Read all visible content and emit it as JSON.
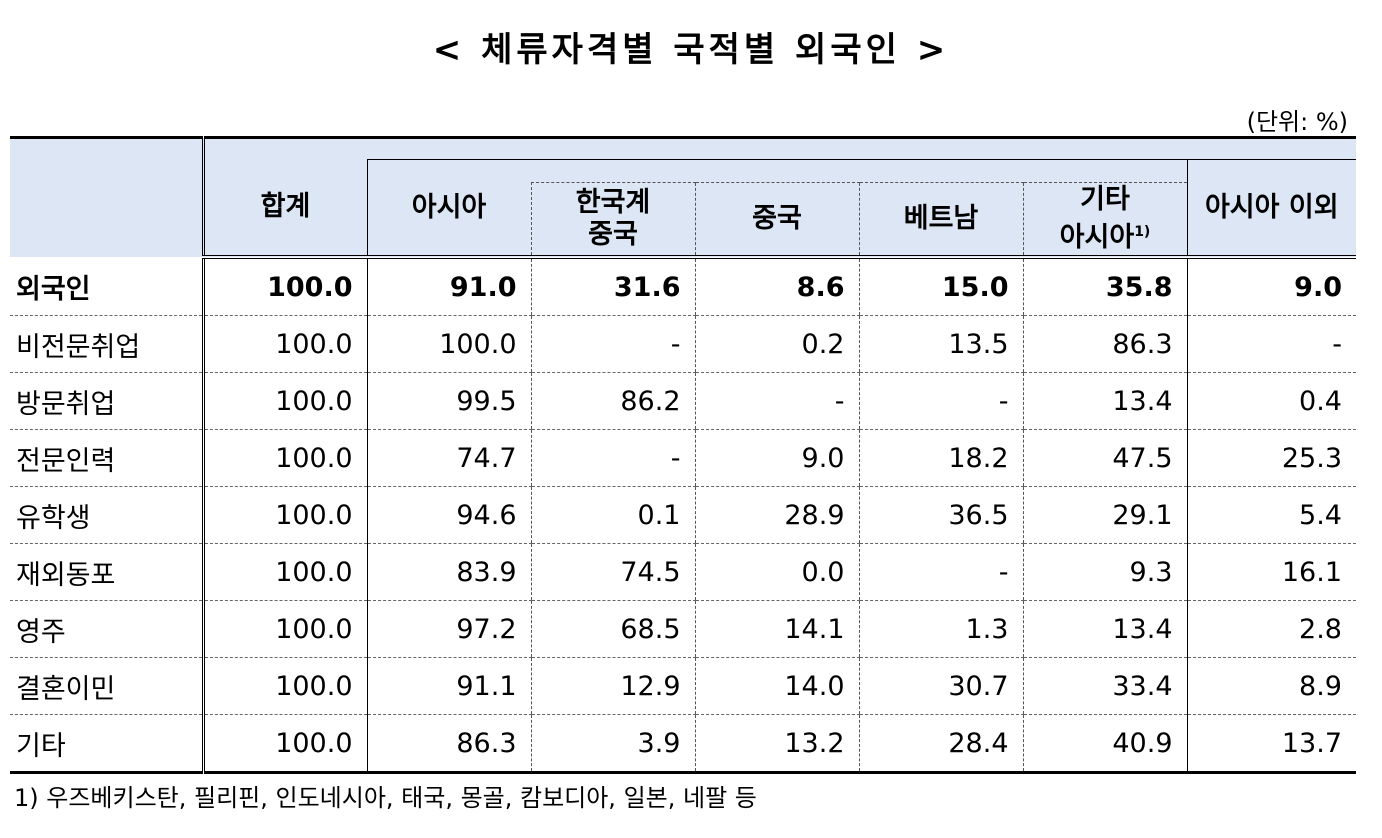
{
  "title": "< 체류자격별 국적별 외국인 >",
  "unit": "(단위: %)",
  "headers": {
    "total": "합계",
    "asia": "아시아",
    "korean_chinese_line1": "한국계",
    "korean_chinese_line2": "중국",
    "china": "중국",
    "vietnam": "베트남",
    "other_asia_line1": "기타",
    "other_asia_line2": "아시아",
    "other_asia_note": "1)",
    "non_asia": "아시아 이외"
  },
  "rows": [
    {
      "label": "외국인",
      "values": [
        "100.0",
        "91.0",
        "31.6",
        "8.6",
        "15.0",
        "35.8",
        "9.0"
      ]
    },
    {
      "label": "비전문취업",
      "values": [
        "100.0",
        "100.0",
        "-",
        "0.2",
        "13.5",
        "86.3",
        "-"
      ]
    },
    {
      "label": "방문취업",
      "values": [
        "100.0",
        "99.5",
        "86.2",
        "-",
        "-",
        "13.4",
        "0.4"
      ]
    },
    {
      "label": "전문인력",
      "values": [
        "100.0",
        "74.7",
        "-",
        "9.0",
        "18.2",
        "47.5",
        "25.3"
      ]
    },
    {
      "label": "유학생",
      "values": [
        "100.0",
        "94.6",
        "0.1",
        "28.9",
        "36.5",
        "29.1",
        "5.4"
      ]
    },
    {
      "label": "재외동포",
      "values": [
        "100.0",
        "83.9",
        "74.5",
        "0.0",
        "-",
        "9.3",
        "16.1"
      ]
    },
    {
      "label": "영주",
      "values": [
        "100.0",
        "97.2",
        "68.5",
        "14.1",
        "1.3",
        "13.4",
        "2.8"
      ]
    },
    {
      "label": "결혼이민",
      "values": [
        "100.0",
        "91.1",
        "12.9",
        "14.0",
        "30.7",
        "33.4",
        "8.9"
      ]
    },
    {
      "label": "기타",
      "values": [
        "100.0",
        "86.3",
        "3.9",
        "13.2",
        "28.4",
        "40.9",
        "13.7"
      ]
    }
  ],
  "footnote": "1) 우즈베키스탄, 필리핀, 인도네시아, 태국, 몽골, 캄보디아, 일본, 네팔 등",
  "colors": {
    "header_bg": "#dce6f4"
  }
}
